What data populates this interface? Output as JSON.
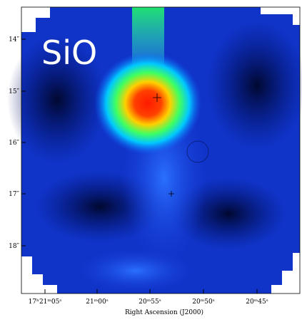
{
  "image": {
    "label": "SiO",
    "x_axis": {
      "title": "Right Ascension (J2000)",
      "ticks": [
        "17ʰ21ᵐ05ˢ",
        "21ᵐ00ˢ",
        "20ᵐ55ˢ",
        "20ᵐ50ˢ",
        "20ᵐ45ˢ"
      ]
    },
    "y_axis": {
      "ticks": [
        "14″",
        "15″",
        "16″",
        "17″",
        "18″"
      ]
    }
  }
}
